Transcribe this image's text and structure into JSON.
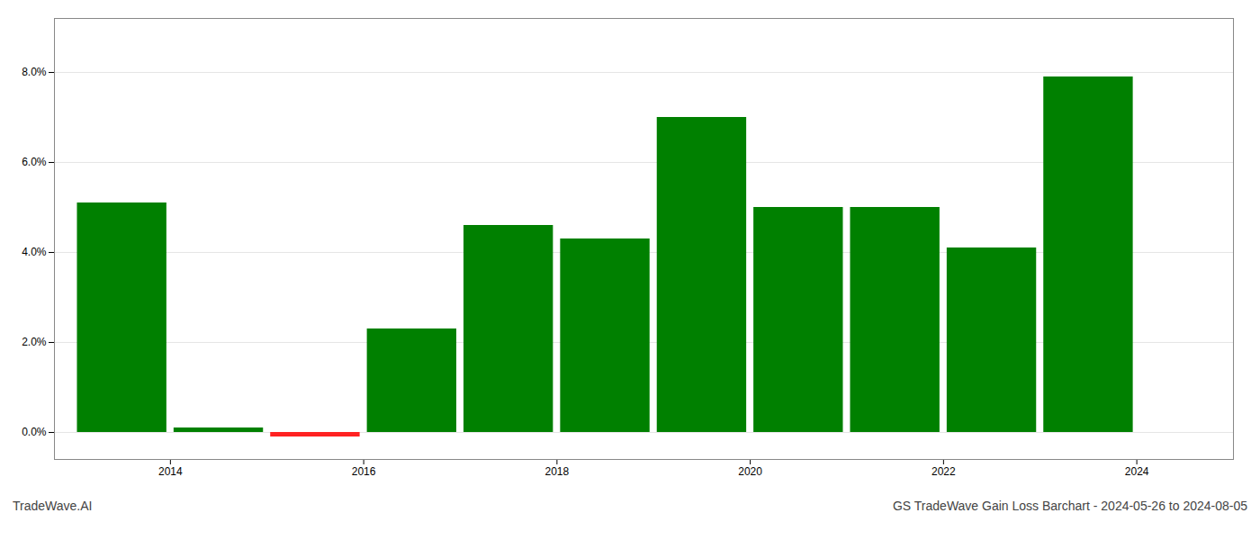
{
  "chart_data": {
    "type": "bar",
    "x": [
      2013.5,
      2014.5,
      2015.5,
      2016.5,
      2017.5,
      2018.5,
      2019.5,
      2020.5,
      2021.5,
      2022.5,
      2023.5
    ],
    "values": [
      0.051,
      0.001,
      -0.001,
      0.023,
      0.046,
      0.043,
      0.07,
      0.05,
      0.05,
      0.041,
      0.079
    ],
    "colors": [
      "#008000",
      "#008000",
      "#ff2222",
      "#008000",
      "#008000",
      "#008000",
      "#008000",
      "#008000",
      "#008000",
      "#008000",
      "#008000"
    ],
    "xlim": [
      2012.8,
      2025.0
    ],
    "xticks": [
      2014,
      2016,
      2018,
      2020,
      2022,
      2024
    ],
    "ylim": [
      -0.006,
      0.092
    ],
    "yticks": [
      {
        "value": 0.0,
        "label": "0.0%"
      },
      {
        "value": 0.02,
        "label": "2.0%"
      },
      {
        "value": 0.04,
        "label": "4.0%"
      },
      {
        "value": 0.06,
        "label": "6.0%"
      },
      {
        "value": 0.08,
        "label": "8.0%"
      }
    ],
    "grid": true,
    "annotations": [
      "TradeWave.AI",
      "GS TradeWave Gain Loss Barchart - 2024-05-26 to 2024-08-05"
    ]
  }
}
